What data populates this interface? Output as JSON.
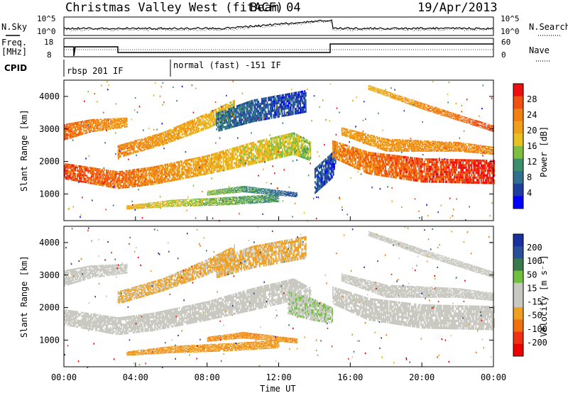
{
  "header": {
    "station": "Christmas Valley West (fitACF)",
    "beam": "Beam 04",
    "date": "19/Apr/2013"
  },
  "noise_panel": {
    "left_label": "N.Sky",
    "right_label": "N.Search",
    "left_ticks": [
      "10^5",
      "10^0"
    ],
    "right_ticks": [
      "10^5",
      "10^0"
    ]
  },
  "freq_panel": {
    "left_label_1": "Freq.",
    "left_label_2": "[MHz]",
    "right_label": "Nave",
    "left_ticks": [
      "18",
      "8"
    ],
    "right_ticks": [
      "60",
      "0"
    ]
  },
  "cpid": {
    "label": "CPID",
    "modes": [
      "rbsp 201 IF",
      "normal (fast) -151 IF"
    ]
  },
  "colors": {
    "power_scale": [
      "#0000ff",
      "#1f3fa0",
      "#2f6f90",
      "#3c8f6a",
      "#7fbf3f",
      "#e8c020",
      "#f0a018",
      "#f08010",
      "#f05010",
      "#ee1010"
    ],
    "velocity_scale": [
      "#1a2fa0",
      "#2a4f9a",
      "#3a7a4a",
      "#70c040",
      "#c8c8c0",
      "#c8c8c0",
      "#f0a020",
      "#f07010",
      "#f03010",
      "#ee0000"
    ],
    "ground_scatter": "#c8c8c0"
  },
  "power_colorbar": {
    "label": "Power [dB]",
    "ticks": [
      "28",
      "24",
      "20",
      "16",
      "12",
      "8",
      "4"
    ]
  },
  "velocity_colorbar": {
    "label": "Velocity [m s⁻¹]",
    "ticks": [
      "200",
      "100",
      "50",
      "15",
      "-15",
      "-50",
      "-100",
      "-200"
    ]
  },
  "x_axis": {
    "label": "Time UT",
    "ticks": [
      "00:00",
      "04:00",
      "08:00",
      "12:00",
      "16:00",
      "20:00",
      "00:00"
    ]
  },
  "chart_data": [
    {
      "type": "heatmap",
      "title": "Power [dB]",
      "xlabel": "Time UT",
      "ylabel": "Slant Range [km]",
      "xlim": [
        0,
        24
      ],
      "ylim": [
        180,
        4500
      ],
      "yticks": [
        1000,
        2000,
        3000,
        4000
      ],
      "clim": [
        0,
        30
      ],
      "bands": [
        {
          "t": [
            0,
            3,
            5,
            8,
            10.5,
            12.8,
            13.8
          ],
          "r0": [
            1450,
            1150,
            1280,
            1600,
            1900,
            2200,
            2000
          ],
          "r1": [
            1950,
            1700,
            1850,
            2200,
            2600,
            2900,
            2600
          ],
          "v": 26,
          "v2": 14
        },
        {
          "t": [
            0,
            1.5,
            3.5
          ],
          "r0": [
            2650,
            2900,
            3050
          ],
          "r1": [
            3150,
            3300,
            3350
          ],
          "v": 24,
          "v2": 20
        },
        {
          "t": [
            3,
            5.5,
            8,
            9.5
          ],
          "r0": [
            2100,
            2500,
            3000,
            3400
          ],
          "r1": [
            2500,
            2900,
            3500,
            3900
          ],
          "v": 22,
          "v2": 17
        },
        {
          "t": [
            3.5,
            6,
            9,
            12
          ],
          "r0": [
            520,
            600,
            650,
            750
          ],
          "r1": [
            650,
            820,
            900,
            1000
          ],
          "v": 18,
          "v2": 10
        },
        {
          "t": [
            8,
            10,
            13
          ],
          "r0": [
            950,
            1050,
            900
          ],
          "r1": [
            1100,
            1250,
            1050
          ],
          "v": 14,
          "v2": 6
        },
        {
          "t": [
            8.5,
            10.5,
            13.5
          ],
          "r0": [
            2900,
            3200,
            3500
          ],
          "r1": [
            3500,
            3900,
            4200
          ],
          "v": 8,
          "v2": 4
        },
        {
          "t": [
            14,
            15,
            15.2
          ],
          "r0": [
            1000,
            1500,
            2100
          ],
          "r1": [
            1800,
            2300,
            2600
          ],
          "v": 6,
          "v2": 4
        },
        {
          "t": [
            15,
            17,
            20,
            24
          ],
          "r0": [
            2100,
            1600,
            1350,
            1300
          ],
          "r1": [
            2650,
            2300,
            2100,
            2050
          ],
          "v": 22,
          "v2": 28
        },
        {
          "t": [
            15.5,
            18,
            22,
            24
          ],
          "r0": [
            2800,
            2300,
            2300,
            2200
          ],
          "r1": [
            3050,
            2700,
            2600,
            2450
          ],
          "v": 20,
          "v2": 22
        },
        {
          "t": [
            17,
            20,
            24
          ],
          "r0": [
            4200,
            3600,
            2900
          ],
          "r1": [
            4350,
            3800,
            3100
          ],
          "v": 18,
          "v2": 26
        }
      ]
    },
    {
      "type": "heatmap",
      "title": "Velocity [m s⁻¹]",
      "xlabel": "Time UT",
      "ylabel": "Slant Range [km]",
      "xlim": [
        0,
        24
      ],
      "ylim": [
        180,
        4500
      ],
      "yticks": [
        1000,
        2000,
        3000,
        4000
      ],
      "clim": [
        -250,
        250
      ],
      "bands": [
        {
          "t": [
            0,
            3,
            5,
            8,
            10.5,
            12.8,
            13.8
          ],
          "r0": [
            1450,
            1150,
            1280,
            1600,
            1900,
            2200,
            2000
          ],
          "r1": [
            1950,
            1700,
            1850,
            2200,
            2600,
            2900,
            2600
          ],
          "v": 0,
          "gs": true
        },
        {
          "t": [
            0,
            1.5,
            3.5
          ],
          "r0": [
            2650,
            2900,
            3050
          ],
          "r1": [
            3150,
            3300,
            3350
          ],
          "v": 0,
          "gs": true
        },
        {
          "t": [
            3,
            5.5,
            8,
            9.5
          ],
          "r0": [
            2100,
            2500,
            3000,
            3400
          ],
          "r1": [
            2500,
            2900,
            3500,
            3900
          ],
          "v": -60
        },
        {
          "t": [
            3.5,
            6,
            9,
            12
          ],
          "r0": [
            520,
            600,
            650,
            750
          ],
          "r1": [
            650,
            820,
            900,
            1000
          ],
          "v": -80
        },
        {
          "t": [
            8,
            10,
            13
          ],
          "r0": [
            950,
            1050,
            900
          ],
          "r1": [
            1100,
            1250,
            1050
          ],
          "v": -90
        },
        {
          "t": [
            8.5,
            10.5,
            13.5
          ],
          "r0": [
            2900,
            3200,
            3500
          ],
          "r1": [
            3500,
            3900,
            4200
          ],
          "v": -60
        },
        {
          "t": [
            12.5,
            13.8,
            15
          ],
          "r0": [
            1800,
            1600,
            1500
          ],
          "r1": [
            2500,
            2300,
            2000
          ],
          "v": 40
        },
        {
          "t": [
            15,
            17,
            20,
            24
          ],
          "r0": [
            2100,
            1600,
            1350,
            1300
          ],
          "r1": [
            2650,
            2300,
            2100,
            2050
          ],
          "v": 0,
          "gs": true
        },
        {
          "t": [
            15.5,
            18,
            22,
            24
          ],
          "r0": [
            2800,
            2300,
            2300,
            2200
          ],
          "r1": [
            3050,
            2700,
            2600,
            2450
          ],
          "v": 0,
          "gs": true
        },
        {
          "t": [
            17,
            20,
            24
          ],
          "r0": [
            4200,
            3600,
            2900
          ],
          "r1": [
            4350,
            3800,
            3100
          ],
          "v": 0,
          "gs": true
        }
      ]
    }
  ]
}
